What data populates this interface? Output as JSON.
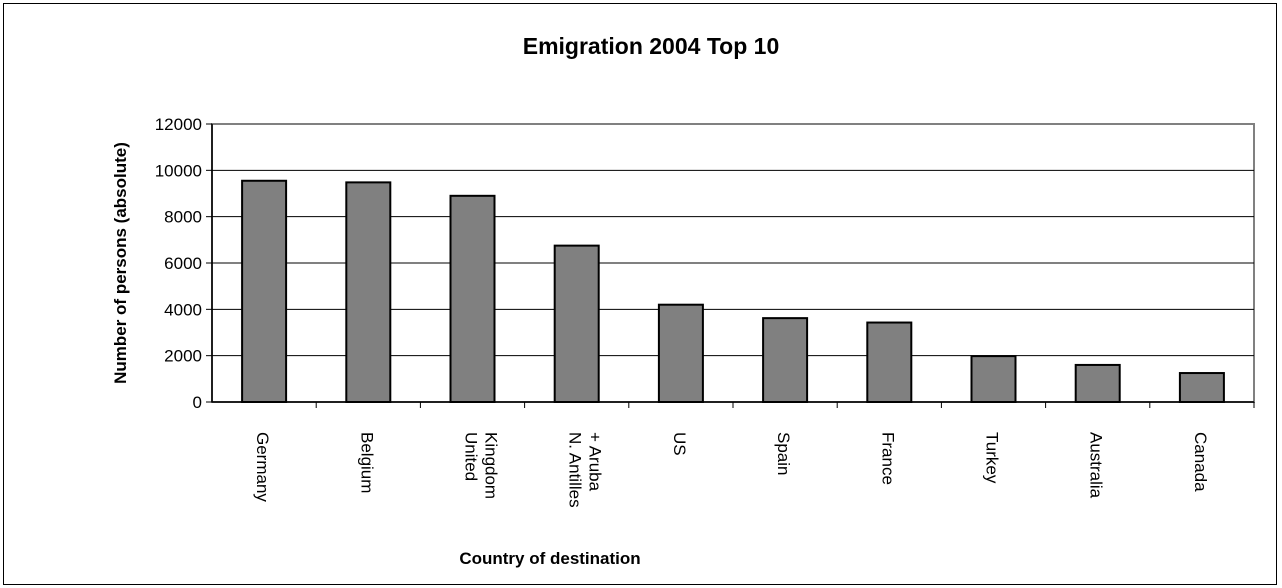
{
  "chart_data": {
    "type": "bar",
    "title": "Emigration 2004 Top 10",
    "xlabel": "Country of destination",
    "ylabel": "Number of persons (absolute)",
    "categories": [
      [
        "Germany"
      ],
      [
        "Belgium"
      ],
      [
        "United",
        "Kingdom"
      ],
      [
        "N. Antilles",
        "+ Aruba"
      ],
      [
        "US"
      ],
      [
        "Spain"
      ],
      [
        "France"
      ],
      [
        "Turkey"
      ],
      [
        "Australia"
      ],
      [
        "Canada"
      ]
    ],
    "values": [
      9550,
      9480,
      8900,
      6750,
      4200,
      3620,
      3430,
      1980,
      1600,
      1250
    ],
    "ylim": [
      0,
      12000
    ],
    "yticks": [
      "0",
      "2000",
      "4000",
      "6000",
      "8000",
      "10000",
      "12000"
    ],
    "grid": true,
    "legend": "none",
    "bar_color": "#808080",
    "plot_border_color": "#808080"
  }
}
